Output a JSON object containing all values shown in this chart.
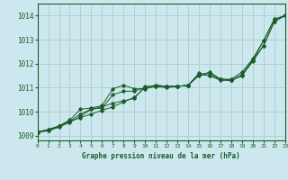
{
  "title": "Graphe pression niveau de la mer (hPa)",
  "bg_color": "#cce8ee",
  "grid_color": "#aacccc",
  "line_color": "#1a5c2a",
  "xlim": [
    0,
    23
  ],
  "ylim": [
    1008.8,
    1014.5
  ],
  "yticks": [
    1009,
    1010,
    1011,
    1012,
    1013,
    1014
  ],
  "xticks": [
    0,
    1,
    2,
    3,
    4,
    5,
    6,
    7,
    8,
    9,
    10,
    11,
    12,
    13,
    14,
    15,
    16,
    17,
    18,
    19,
    20,
    21,
    22,
    23
  ],
  "series": [
    [
      1009.15,
      1009.2,
      1009.4,
      1009.6,
      1009.75,
      1009.9,
      1010.05,
      1010.2,
      1010.4,
      1010.6,
      1011.0,
      1011.1,
      1011.05,
      1011.05,
      1011.1,
      1011.55,
      1011.6,
      1011.35,
      1011.35,
      1011.65,
      1012.2,
      1012.95,
      1013.85,
      1014.0
    ],
    [
      1009.15,
      1009.2,
      1009.35,
      1009.55,
      1009.8,
      1010.1,
      1010.15,
      1010.7,
      1010.85,
      1010.85,
      1011.0,
      1011.1,
      1011.05,
      1011.05,
      1011.1,
      1011.55,
      1011.5,
      1011.35,
      1011.3,
      1011.5,
      1012.1,
      1012.75,
      1013.75,
      1014.0
    ],
    [
      1009.15,
      1009.25,
      1009.4,
      1009.65,
      1010.1,
      1010.15,
      1010.25,
      1010.95,
      1011.1,
      1010.95,
      1010.95,
      1011.05,
      1011.05,
      1011.05,
      1011.1,
      1011.5,
      1011.65,
      1011.35,
      1011.3,
      1011.5,
      1012.15,
      1012.75,
      1013.75,
      1014.0
    ],
    [
      1009.15,
      1009.25,
      1009.4,
      1009.6,
      1009.9,
      1010.1,
      1010.2,
      1010.35,
      1010.45,
      1010.55,
      1011.05,
      1011.05,
      1011.0,
      1011.05,
      1011.1,
      1011.6,
      1011.5,
      1011.3,
      1011.3,
      1011.55,
      1012.15,
      1012.95,
      1013.85,
      1014.0
    ]
  ]
}
